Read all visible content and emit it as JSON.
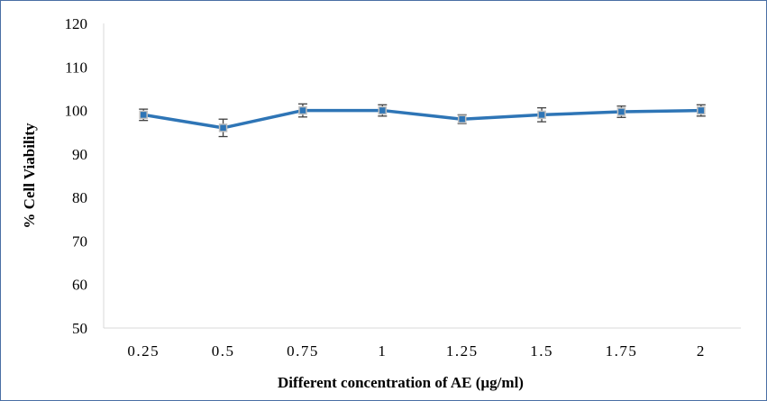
{
  "chart_data": {
    "type": "line",
    "title": "",
    "xlabel": "Different concentration of AE (µg/ml)",
    "ylabel": "% Cell Viability",
    "categories": [
      "0.25",
      "0.5",
      "0.75",
      "1",
      "1.25",
      "1.5",
      "1.75",
      "2"
    ],
    "ylim": [
      50,
      120
    ],
    "yticks": [
      50,
      60,
      70,
      80,
      90,
      100,
      110,
      120
    ],
    "grid": false,
    "legend": "none",
    "series": [
      {
        "values": [
          99,
          96,
          100,
          100,
          98,
          99,
          99.7,
          100
        ],
        "error": [
          1.3,
          2.0,
          1.5,
          1.3,
          1.0,
          1.6,
          1.3,
          1.3
        ],
        "color": "#2e75b6",
        "marker": "square"
      }
    ]
  }
}
